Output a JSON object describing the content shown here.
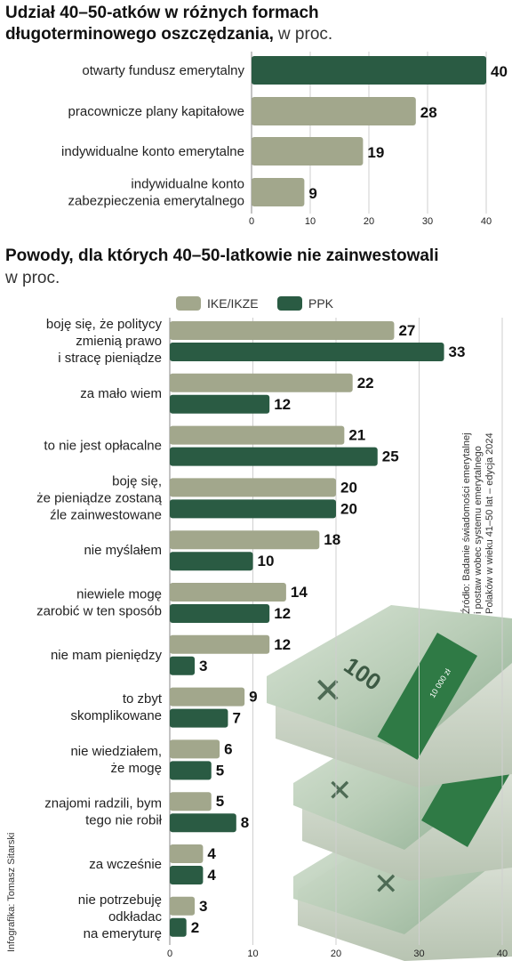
{
  "colors": {
    "dark_green": "#2a5b43",
    "light_green": "#a2a78c",
    "grid": "#cfcfcf",
    "axis": "#888888"
  },
  "chart_data": [
    {
      "type": "bar",
      "orientation": "horizontal",
      "title_bold": "Udział 40–50-atków w różnych formach",
      "title_bold_line2": "długoterminowego oszczędzania,",
      "title_unit": "w proc.",
      "categories": [
        "otwarty fundusz emerytalny",
        "pracownicze plany kapitałowe",
        "indywidualne konto emerytalne",
        "indywidualne konto zabezpieczenia emerytalnego"
      ],
      "category_lines": [
        [
          "otwarty fundusz emerytalny"
        ],
        [
          "pracownicze plany kapitałowe"
        ],
        [
          "indywidualne konto emerytalne"
        ],
        [
          "indywidualne konto",
          "zabezpieczenia emerytalnego"
        ]
      ],
      "values": [
        40,
        28,
        19,
        9
      ],
      "value_labels": [
        "40",
        "28",
        "19",
        "9"
      ],
      "xlim": [
        0,
        40
      ],
      "ticks": [
        "0",
        "10",
        "20",
        "30",
        "40"
      ],
      "tick_values": [
        0,
        10,
        20,
        30,
        40
      ],
      "grid": true
    },
    {
      "type": "bar",
      "orientation": "horizontal",
      "title_bold": "Powody, dla których 40–50-latkowie nie zainwestowali",
      "title_unit": "w proc.",
      "legend": [
        "IKE/IKZE",
        "PPK"
      ],
      "legend_position": "top",
      "categories": [
        "boję się, że politycy zmienią prawo i stracę pieniądze",
        "za mało wiem",
        "to nie jest opłacalne",
        "boję się, że pieniądze zostaną źle zainwestowane",
        "nie myślałem",
        "niewiele mogę zarobić w ten sposób",
        "nie mam pieniędzy",
        "to zbyt skomplikowane",
        "nie wiedziałem, że mogę",
        "znajomi radzili, bym tego nie robił",
        "za wcześnie",
        "nie potrzebuję odkładać na emeryturę"
      ],
      "category_lines": [
        [
          "boję się, że politycy",
          "zmienią prawo",
          "i stracę pieniądze"
        ],
        [
          "za mało wiem"
        ],
        [
          "to nie jest opłacalne"
        ],
        [
          "boję się,",
          "że pieniądze zostaną",
          "źle zainwestowane"
        ],
        [
          "nie myślałem"
        ],
        [
          "niewiele mogę",
          "zarobić w ten sposób"
        ],
        [
          "nie mam pieniędzy"
        ],
        [
          "to zbyt",
          "skomplikowane"
        ],
        [
          "nie wiedziałem,",
          "że mogę"
        ],
        [
          "znajomi radzili, bym",
          "tego nie robił"
        ],
        [
          "za wcześnie"
        ],
        [
          "nie potrzebuję",
          "odkładac",
          "na emeryturę"
        ]
      ],
      "series": [
        {
          "name": "IKE/IKZE",
          "values": [
            27,
            22,
            21,
            20,
            18,
            14,
            12,
            9,
            6,
            5,
            4,
            3
          ]
        },
        {
          "name": "PPK",
          "values": [
            33,
            12,
            25,
            20,
            10,
            12,
            3,
            7,
            5,
            8,
            4,
            2
          ]
        }
      ],
      "xlim": [
        0,
        40
      ],
      "ticks": [
        "0",
        "10",
        "20",
        "30",
        "40"
      ],
      "tick_values": [
        0,
        10,
        20,
        30,
        40
      ],
      "grid": true
    }
  ],
  "source": {
    "line1": "Źródło: Badanie świadomości emerytalnej",
    "line2": "i postaw wobec systemu emerytalnego",
    "line3": "Polaków w wieku 41–50 lat – edycja 2024"
  },
  "credit": "Infografika: Tomasz Sitarski",
  "image": {
    "name": "banknote-stacks-illustration",
    "denomination": "100",
    "band_text": "10 000 zł"
  }
}
